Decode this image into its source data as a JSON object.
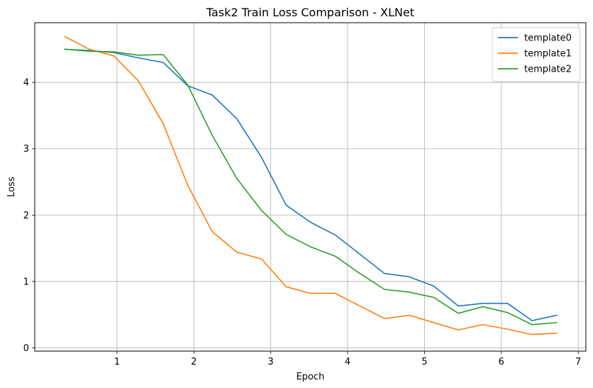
{
  "chart_data": {
    "type": "line",
    "title": "Task2 Train Loss Comparison - XLNet",
    "xlabel": "Epoch",
    "ylabel": "Loss",
    "xlim": [
      -0.07,
      7.1
    ],
    "ylim": [
      -0.05,
      4.9
    ],
    "xticks": [
      1,
      2,
      3,
      4,
      5,
      6,
      7
    ],
    "yticks": [
      0,
      1,
      2,
      3,
      4
    ],
    "grid": true,
    "legend_position": "top-right",
    "x": [
      0.32,
      0.64,
      0.96,
      1.28,
      1.6,
      1.92,
      2.24,
      2.56,
      2.88,
      3.2,
      3.52,
      3.84,
      4.16,
      4.48,
      4.8,
      5.12,
      5.44,
      5.76,
      6.08,
      6.4,
      6.72
    ],
    "series": [
      {
        "name": "template0",
        "color": "#1f77b4",
        "values": [
          4.5,
          4.48,
          4.45,
          4.37,
          4.3,
          3.95,
          3.81,
          3.45,
          2.87,
          2.15,
          1.89,
          1.7,
          1.41,
          1.12,
          1.07,
          0.93,
          0.63,
          0.67,
          0.67,
          0.41,
          0.49
        ]
      },
      {
        "name": "template1",
        "color": "#ff7f0e",
        "values": [
          4.69,
          4.5,
          4.4,
          4.02,
          3.38,
          2.45,
          1.75,
          1.44,
          1.34,
          0.92,
          0.82,
          0.82,
          0.63,
          0.44,
          0.49,
          0.38,
          0.27,
          0.35,
          0.28,
          0.2,
          0.22
        ]
      },
      {
        "name": "template2",
        "color": "#2ca02c",
        "values": [
          4.5,
          4.47,
          4.46,
          4.41,
          4.42,
          3.96,
          3.2,
          2.55,
          2.07,
          1.71,
          1.52,
          1.38,
          1.12,
          0.88,
          0.84,
          0.76,
          0.52,
          0.62,
          0.53,
          0.35,
          0.38
        ]
      }
    ]
  }
}
